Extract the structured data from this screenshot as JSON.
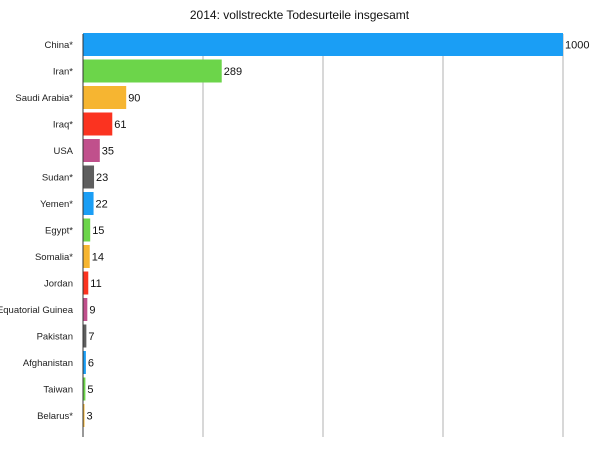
{
  "chart_data": {
    "type": "bar",
    "orientation": "horizontal",
    "title": "2014: vollstreckte Todesurteile insgesamt",
    "xlabel": "",
    "ylabel": "",
    "xlim": [
      0,
      1000
    ],
    "grid": true,
    "categories": [
      "China*",
      "Iran*",
      "Saudi Arabia*",
      "Iraq*",
      "USA",
      "Sudan*",
      "Yemen*",
      "Egypt*",
      "Somalia*",
      "Jordan",
      "Equatorial Guinea",
      "Pakistan",
      "Afghanistan",
      "Taiwan",
      "Belarus*"
    ],
    "values": [
      1000,
      289,
      90,
      61,
      35,
      23,
      22,
      15,
      14,
      11,
      9,
      7,
      6,
      5,
      3
    ],
    "value_labels": [
      "1000",
      "289",
      "90",
      "61",
      "35",
      "23",
      "22",
      "15",
      "14",
      "11",
      "9",
      "7",
      "6",
      "5",
      "3"
    ],
    "colors": [
      "#1a9ef5",
      "#6cd54a",
      "#f6b531",
      "#fb3320",
      "#c0508c",
      "#5e5e5e",
      "#1a9ef5",
      "#6cd54a",
      "#f6b531",
      "#fb3320",
      "#c0508c",
      "#5e5e5e",
      "#1a9ef5",
      "#6cd54a",
      "#f6b531"
    ]
  }
}
